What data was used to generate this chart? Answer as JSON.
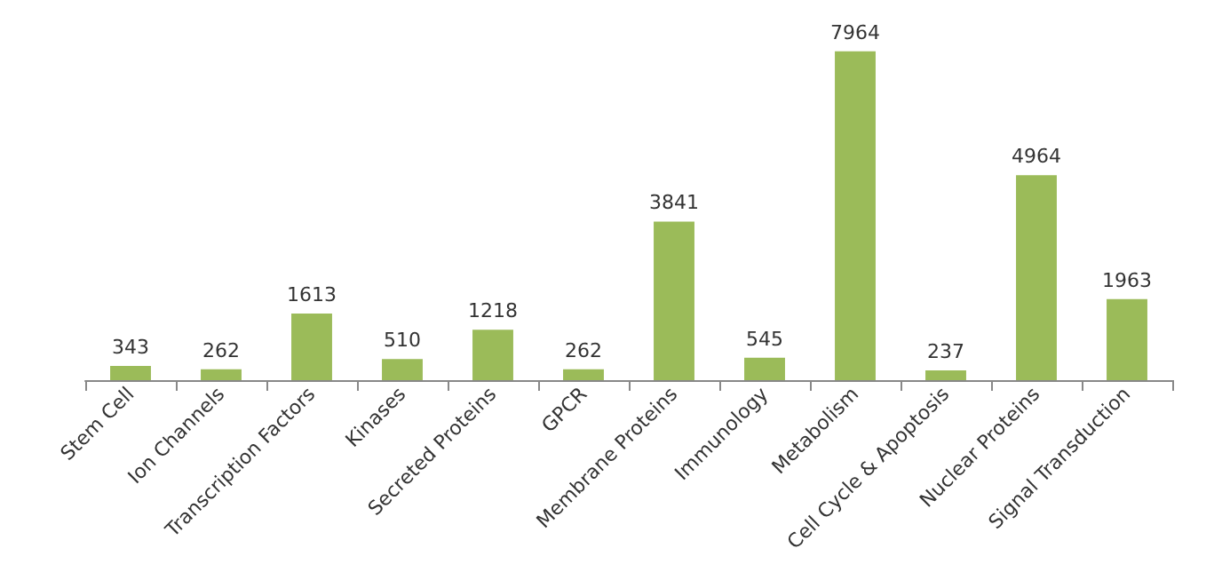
{
  "chart_data": {
    "type": "bar",
    "categories": [
      "Stem Cell",
      "Ion Channels",
      "Transcription Factors",
      "Kinases",
      "Secreted Proteins",
      "GPCR",
      "Membrane Proteins",
      "Immunology",
      "Metabolism",
      "Cell Cycle & Apoptosis",
      "Nuclear Proteins",
      "Signal Transduction"
    ],
    "values": [
      343,
      262,
      1613,
      510,
      1218,
      262,
      3841,
      545,
      7964,
      237,
      4964,
      1963
    ],
    "color": "#9bbb59",
    "data_labels": true
  }
}
